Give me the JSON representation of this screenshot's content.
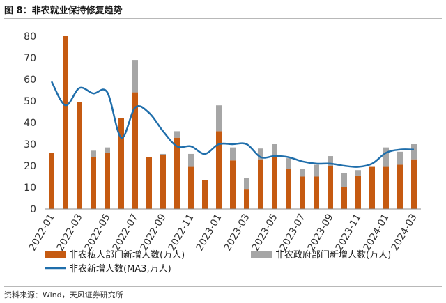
{
  "header": {
    "title": "图 8：非农就业保持修复趋势"
  },
  "footer": {
    "source": "资料来源：Wind，天风证券研究所"
  },
  "chart_data": {
    "type": "bar",
    "stacked": true,
    "categories": [
      "2022-01",
      "2022-02",
      "2022-03",
      "2022-04",
      "2022-05",
      "2022-06",
      "2022-07",
      "2022-08",
      "2022-09",
      "2022-10",
      "2022-11",
      "2022-12",
      "2023-01",
      "2023-02",
      "2023-03",
      "2023-04",
      "2023-05",
      "2023-06",
      "2023-07",
      "2023-08",
      "2023-09",
      "2023-10",
      "2023-11",
      "2023-12",
      "2024-01",
      "2024-02",
      "2024-03"
    ],
    "xtick_labels": [
      "2022-01",
      "2022-03",
      "2022-05",
      "2022-07",
      "2022-09",
      "2022-11",
      "2023-01",
      "2023-03",
      "2023-05",
      "2023-07",
      "2023-09",
      "2023-11",
      "2024-01",
      "2024-03"
    ],
    "yticks": [
      0,
      10,
      20,
      30,
      40,
      50,
      60,
      70,
      80
    ],
    "ylim": [
      0,
      80
    ],
    "series": [
      {
        "name": "非农私人部门新增人数(万人)",
        "kind": "bar",
        "color": "#c55a11",
        "values": [
          26,
          80,
          49.5,
          24,
          26,
          42,
          54,
          24,
          25,
          33,
          19.5,
          13.5,
          36,
          22.5,
          9,
          23,
          25,
          18.5,
          15,
          15,
          20,
          10,
          15.5,
          19.5,
          19.5,
          20.5,
          23
        ]
      },
      {
        "name": "非农政府部门新增人数(万人)",
        "kind": "bar",
        "color": "#a6a6a6",
        "values": [
          0,
          0,
          0,
          3,
          2.5,
          0,
          15,
          0,
          0.5,
          3,
          6,
          0,
          12,
          6,
          5.5,
          5,
          5,
          5,
          3.5,
          5.5,
          4.5,
          6.5,
          2.5,
          0,
          9,
          6,
          7
        ]
      },
      {
        "name": "非农新增人数(MA3,万人)",
        "kind": "line",
        "color": "#1f6eab",
        "values": [
          59,
          48,
          56,
          53.5,
          54,
          33,
          47,
          44.5,
          36,
          29,
          29,
          25.5,
          30,
          30,
          30,
          24,
          24.5,
          24,
          22,
          21,
          21,
          20,
          19.5,
          21,
          26,
          27.5,
          27.5
        ]
      }
    ]
  }
}
